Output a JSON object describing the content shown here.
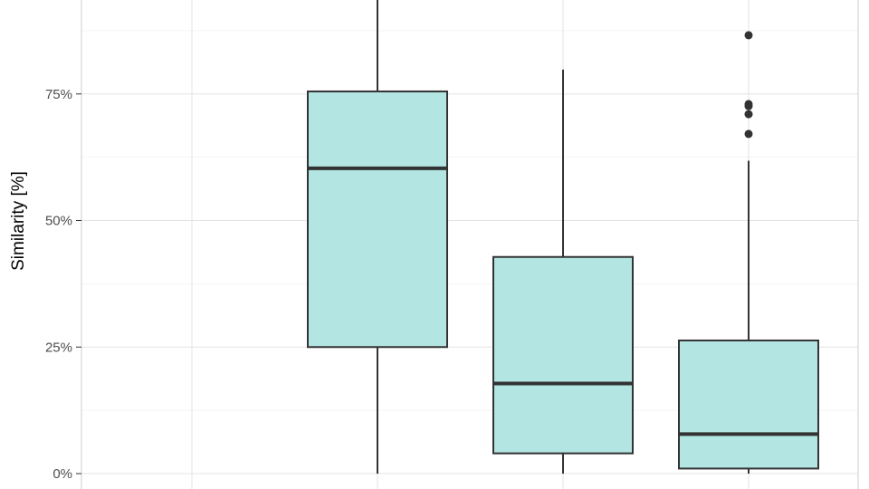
{
  "chart_data": {
    "type": "boxplot",
    "title": "",
    "xlabel": "",
    "ylabel": "Similarity [%]",
    "y_tick_labels": [
      "0%",
      "25%",
      "50%",
      "75%"
    ],
    "y_ticks": [
      0,
      25,
      50,
      75
    ],
    "ylim": [
      0,
      93
    ],
    "grid": true,
    "legend": "none",
    "box_fill": "#b3e5e3",
    "box_stroke": "#333333",
    "n_categories": 4,
    "boxes": [
      {
        "position": 2,
        "whisker_low": 0,
        "q1": 25,
        "median": 60.3,
        "q3": 75.5,
        "whisker_high": 100,
        "outliers": []
      },
      {
        "position": 3,
        "whisker_low": 0,
        "q1": 4,
        "median": 17.8,
        "q3": 42.8,
        "whisker_high": 79.8,
        "outliers": []
      },
      {
        "position": 4,
        "whisker_low": 0,
        "q1": 1,
        "median": 7.8,
        "q3": 26.3,
        "whisker_high": 61.8,
        "outliers": [
          86.6,
          73.0,
          72.6,
          71.0,
          67.1
        ]
      }
    ]
  }
}
